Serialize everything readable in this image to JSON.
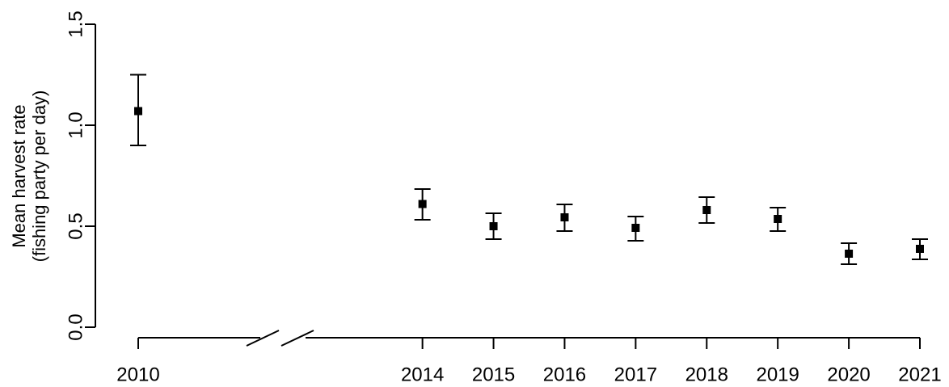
{
  "chart_data": {
    "type": "errorbar",
    "ylabel": [
      "Mean harvest rate",
      "(fishing party per day)"
    ],
    "x": [
      2010,
      2014,
      2015,
      2016,
      2017,
      2018,
      2019,
      2020,
      2021
    ],
    "values": [
      1.07,
      0.61,
      0.5,
      0.544,
      0.492,
      0.58,
      0.536,
      0.364,
      0.388
    ],
    "lower": [
      0.9,
      0.532,
      0.436,
      0.476,
      0.428,
      0.516,
      0.476,
      0.312,
      0.336
    ],
    "upper": [
      1.25,
      0.684,
      0.564,
      0.608,
      0.548,
      0.644,
      0.592,
      0.416,
      0.436
    ],
    "color": "#000000",
    "xlim": [
      2010,
      2021
    ],
    "xticks": [
      2010,
      2014,
      2015,
      2016,
      2017,
      2018,
      2019,
      2020,
      2021
    ],
    "ylim": [
      0,
      1.5
    ],
    "yticks": [
      {
        "value": 0,
        "label": "0.0"
      },
      0.5,
      {
        "value": 1,
        "label": "1.0"
      },
      1.5
    ]
  }
}
